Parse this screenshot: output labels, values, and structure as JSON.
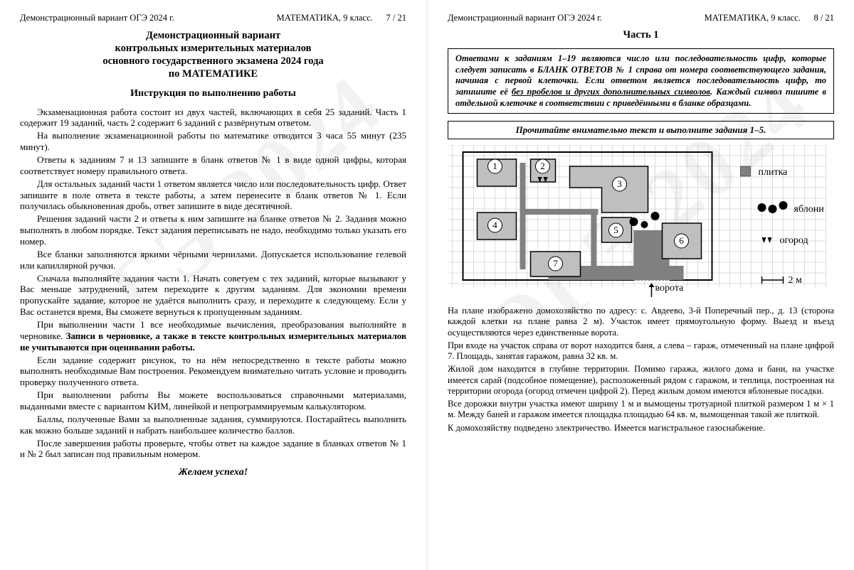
{
  "doc": {
    "header_left": "Демонстрационный вариант ОГЭ 2024 г.",
    "header_mid": "МАТЕМАТИКА, 9 класс.",
    "page7": "7 / 21",
    "page8": "8 / 21",
    "watermark": "ОГЭ 2024"
  },
  "page7": {
    "title1": "Демонстрационный вариант",
    "title2": "контрольных измерительных материалов",
    "title3": "основного государственного экзамена 2024 года",
    "title4": "по МАТЕМАТИКЕ",
    "instr_title": "Инструкция по выполнению работы",
    "p1": "Экзаменационная работа состоит из двух частей, включающих в себя 25 заданий. Часть 1 содержит 19 заданий, часть 2 содержит 6 заданий с развёрнутым ответом.",
    "p2": "На выполнение экзаменационной работы по математике отводится 3 часа 55 минут (235 минут).",
    "p3": "Ответы к заданиям 7 и 13 запишите в бланк ответов № 1 в виде одной цифры, которая соответствует номеру правильного ответа.",
    "p4": "Для остальных заданий части 1 ответом является число или последовательность цифр. Ответ запишите в поле ответа в тексте работы, а затем перенесите в бланк ответов № 1. Если получилась обыкновенная дробь, ответ запишите в виде десятичной.",
    "p5": "Решения заданий части 2 и ответы к ним запишите на бланке ответов № 2. Задания можно выполнять в любом порядке. Текст задания переписывать не надо, необходимо только указать его номер.",
    "p6": "Все бланки заполняются яркими чёрными чернилами. Допускается использование гелевой или капиллярной ручки.",
    "p7": "Сначала выполняйте задания части 1. Начать советуем с тех заданий, которые вызывают у Вас меньше затруднений, затем переходите к другим заданиям. Для экономии времени пропускайте задание, которое не удаётся выполнить сразу, и переходите к следующему. Если у Вас останется время, Вы сможете вернуться к пропущенным заданиям.",
    "p8a": "При выполнении части 1 все необходимые вычисления, преобразования выполняйте в черновике. ",
    "p8b": "Записи в черновике, а также в тексте контрольных измерительных материалов не учитываются при оценивании работы.",
    "p9": "Если задание содержит рисунок, то на нём непосредственно в тексте работы можно выполнять необходимые Вам построения. Рекомендуем внимательно читать условие и проводить проверку полученного ответа.",
    "p10": "При выполнении работы Вы можете воспользоваться справочными материалами, выданными вместе с вариантом КИМ, линейкой и непрограммируемым калькулятором.",
    "p11": "Баллы, полученные Вами за выполненные задания, суммируются. Постарайтесь выполнить как можно больше заданий и набрать наибольшее количество баллов.",
    "p12": "После завершения работы проверьте, чтобы ответ на каждое задание в бланках ответов № 1 и № 2 был записан под правильным номером.",
    "wish": "Желаем успеха!"
  },
  "page8": {
    "part_title": "Часть 1",
    "info1": "Ответами к заданиям 1–19 являются число или последовательность цифр, которые следует записать в БЛАНК ОТВЕТОВ № 1 справа от номера соответствующего задания, начиная с первой клеточки. Если ответом является последовательность цифр, то запишите её ",
    "info2": "без пробелов и других дополнительных символов",
    "info3": ". Каждый символ пишите в отдельной клеточке в соответствии с приведёнными в бланке образцами.",
    "read_box": "Прочитайте внимательно текст и выполните задания 1–5.",
    "legend": {
      "plitka": "плитка",
      "yabloni": "яблони",
      "ogorod": "огород",
      "vorota": "ворота",
      "scale": "2 м"
    },
    "numbers": {
      "n1": "1",
      "n2": "2",
      "n3": "3",
      "n4": "4",
      "n5": "5",
      "n6": "6",
      "n7": "7"
    },
    "d1": "На плане изображено домохозяйство по адресу: с. Авдеево, 3-й Поперечный пер., д. 13 (сторона каждой клетки на плане равна 2 м). Участок имеет прямоугольную форму. Выезд и въезд осуществляются через единственные ворота.",
    "d2": "При входе на участок справа от ворот находится баня, а слева – гараж, отмеченный на плане цифрой 7. Площадь, занятая гаражом, равна 32 кв. м.",
    "d3": "Жилой дом находится в глубине территории. Помимо гаража, жилого дома и бани, на участке имеется сарай (подсобное помещение), расположенный рядом с гаражом, и теплица, построенная на территории огорода (огород отмечен цифрой 2). Перед жилым домом имеются яблоневые посадки.",
    "d4": "Все дорожки внутри участка имеют ширину 1 м и вымощены тротуарной плиткой размером 1 м × 1 м. Между баней и гаражом имеется площадка площадью 64 кв. м, вымощенная такой же плиткой.",
    "d5": "К домохозяйству подведено электричество. Имеется магистральное газоснабжение."
  },
  "style": {
    "page_bg": "#ffffff",
    "text_color": "#000000",
    "grid_color": "#999999",
    "building_fill": "#bfbfbf",
    "building_stroke": "#000000",
    "tile_fill": "#808080",
    "watermark_color": "rgba(0,0,0,0.05)",
    "font_family": "Times New Roman",
    "body_fontsize": 13,
    "title_fontsize": 14.5
  }
}
